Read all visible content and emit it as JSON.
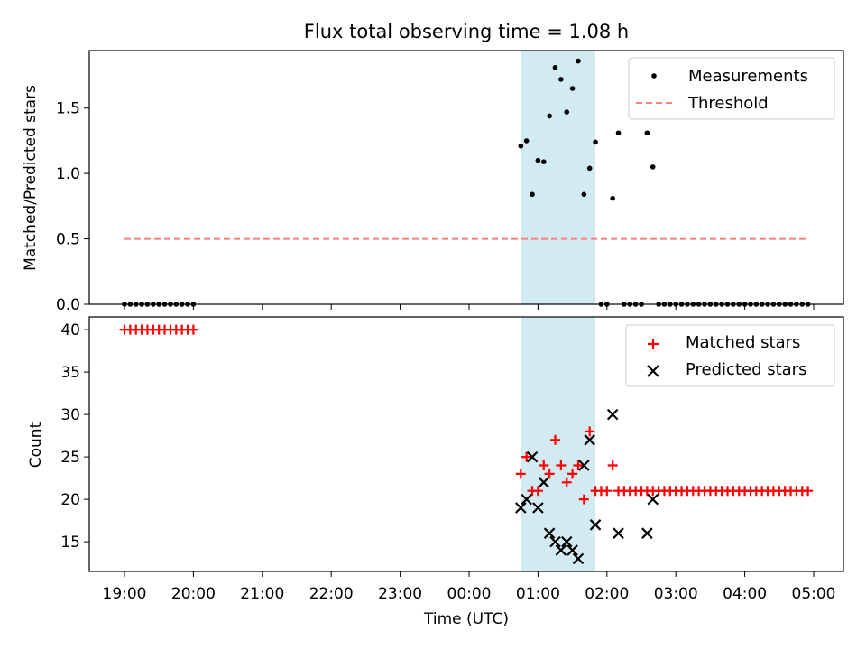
{
  "chart_data": [
    {
      "type": "scatter",
      "title": "Flux total observing time = 1.08 h",
      "xlabel": "",
      "ylabel": "Matched/Predicted stars",
      "ylim": [
        0,
        1.94
      ],
      "yticks": [
        0.0,
        0.5,
        1.0,
        1.5
      ],
      "ytick_labels": [
        "0.0",
        "0.5",
        "1.0",
        "1.5"
      ],
      "highlight_span": {
        "start": "00:45",
        "end": "01:50",
        "color": "#add8e6"
      },
      "legend_position": "top-right",
      "series": [
        {
          "name": "Measurements",
          "color": "#000000",
          "marker": "dot",
          "points": [
            [
              "19:00",
              0
            ],
            [
              "19:05",
              0
            ],
            [
              "19:10",
              0
            ],
            [
              "19:15",
              0
            ],
            [
              "19:20",
              0
            ],
            [
              "19:25",
              0
            ],
            [
              "19:30",
              0
            ],
            [
              "19:35",
              0
            ],
            [
              "19:40",
              0
            ],
            [
              "19:45",
              0
            ],
            [
              "19:50",
              0
            ],
            [
              "19:55",
              0
            ],
            [
              "20:00",
              0
            ],
            [
              "00:45",
              1.21
            ],
            [
              "00:50",
              1.25
            ],
            [
              "00:55",
              0.84
            ],
            [
              "01:00",
              1.1
            ],
            [
              "01:05",
              1.09
            ],
            [
              "01:10",
              1.44
            ],
            [
              "01:15",
              1.81
            ],
            [
              "01:20",
              1.72
            ],
            [
              "01:25",
              1.47
            ],
            [
              "01:30",
              1.65
            ],
            [
              "01:35",
              1.86
            ],
            [
              "01:40",
              0.84
            ],
            [
              "01:45",
              1.04
            ],
            [
              "01:50",
              1.24
            ],
            [
              "01:55",
              0
            ],
            [
              "02:00",
              0
            ],
            [
              "02:05",
              0.81
            ],
            [
              "02:10",
              1.31
            ],
            [
              "02:15",
              0
            ],
            [
              "02:20",
              0
            ],
            [
              "02:25",
              0
            ],
            [
              "02:30",
              0
            ],
            [
              "02:35",
              1.31
            ],
            [
              "02:40",
              1.05
            ],
            [
              "02:45",
              0
            ],
            [
              "02:50",
              0
            ],
            [
              "02:55",
              0
            ],
            [
              "03:00",
              0
            ],
            [
              "03:05",
              0
            ],
            [
              "03:10",
              0
            ],
            [
              "03:15",
              0
            ],
            [
              "03:20",
              0
            ],
            [
              "03:25",
              0
            ],
            [
              "03:30",
              0
            ],
            [
              "03:35",
              0
            ],
            [
              "03:40",
              0
            ],
            [
              "03:45",
              0
            ],
            [
              "03:50",
              0
            ],
            [
              "03:55",
              0
            ],
            [
              "04:00",
              0
            ],
            [
              "04:05",
              0
            ],
            [
              "04:10",
              0
            ],
            [
              "04:15",
              0
            ],
            [
              "04:20",
              0
            ],
            [
              "04:25",
              0
            ],
            [
              "04:30",
              0
            ],
            [
              "04:35",
              0
            ],
            [
              "04:40",
              0
            ],
            [
              "04:45",
              0
            ],
            [
              "04:50",
              0
            ],
            [
              "04:55",
              0
            ]
          ]
        },
        {
          "name": "Threshold",
          "color": "#ff7f7f",
          "style": "dashed-line",
          "points": [
            [
              "19:00",
              0.5
            ],
            [
              "04:55",
              0.5
            ]
          ]
        }
      ]
    },
    {
      "type": "scatter",
      "title": "",
      "xlabel": "Time (UTC)",
      "ylabel": "Count",
      "ylim": [
        11.5,
        41.5
      ],
      "yticks": [
        15,
        20,
        25,
        30,
        35,
        40
      ],
      "ytick_labels": [
        "15",
        "20",
        "25",
        "30",
        "35",
        "40"
      ],
      "xticks": [
        "19:00",
        "20:00",
        "21:00",
        "22:00",
        "23:00",
        "00:00",
        "01:00",
        "02:00",
        "03:00",
        "04:00",
        "05:00"
      ],
      "highlight_span": {
        "start": "00:45",
        "end": "01:50",
        "color": "#add8e6"
      },
      "legend_position": "top-right",
      "series": [
        {
          "name": "Matched stars",
          "color": "#ff0000",
          "marker": "plus",
          "points": [
            [
              "19:00",
              40
            ],
            [
              "19:05",
              40
            ],
            [
              "19:10",
              40
            ],
            [
              "19:15",
              40
            ],
            [
              "19:20",
              40
            ],
            [
              "19:25",
              40
            ],
            [
              "19:30",
              40
            ],
            [
              "19:35",
              40
            ],
            [
              "19:40",
              40
            ],
            [
              "19:45",
              40
            ],
            [
              "19:50",
              40
            ],
            [
              "19:55",
              40
            ],
            [
              "20:00",
              40
            ],
            [
              "00:45",
              23
            ],
            [
              "00:50",
              25
            ],
            [
              "00:55",
              21
            ],
            [
              "01:00",
              21
            ],
            [
              "01:05",
              24
            ],
            [
              "01:10",
              23
            ],
            [
              "01:15",
              27
            ],
            [
              "01:20",
              24
            ],
            [
              "01:25",
              22
            ],
            [
              "01:30",
              23
            ],
            [
              "01:35",
              24
            ],
            [
              "01:40",
              20
            ],
            [
              "01:45",
              28
            ],
            [
              "01:50",
              21
            ],
            [
              "01:55",
              21
            ],
            [
              "02:00",
              21
            ],
            [
              "02:05",
              24
            ],
            [
              "02:10",
              21
            ],
            [
              "02:15",
              21
            ],
            [
              "02:20",
              21
            ],
            [
              "02:25",
              21
            ],
            [
              "02:30",
              21
            ],
            [
              "02:35",
              21
            ],
            [
              "02:40",
              21
            ],
            [
              "02:45",
              21
            ],
            [
              "02:50",
              21
            ],
            [
              "02:55",
              21
            ],
            [
              "03:00",
              21
            ],
            [
              "03:05",
              21
            ],
            [
              "03:10",
              21
            ],
            [
              "03:15",
              21
            ],
            [
              "03:20",
              21
            ],
            [
              "03:25",
              21
            ],
            [
              "03:30",
              21
            ],
            [
              "03:35",
              21
            ],
            [
              "03:40",
              21
            ],
            [
              "03:45",
              21
            ],
            [
              "03:50",
              21
            ],
            [
              "03:55",
              21
            ],
            [
              "04:00",
              21
            ],
            [
              "04:05",
              21
            ],
            [
              "04:10",
              21
            ],
            [
              "04:15",
              21
            ],
            [
              "04:20",
              21
            ],
            [
              "04:25",
              21
            ],
            [
              "04:30",
              21
            ],
            [
              "04:35",
              21
            ],
            [
              "04:40",
              21
            ],
            [
              "04:45",
              21
            ],
            [
              "04:50",
              21
            ],
            [
              "04:55",
              21
            ]
          ]
        },
        {
          "name": "Predicted stars",
          "color": "#000000",
          "marker": "x",
          "points": [
            [
              "00:45",
              19
            ],
            [
              "00:50",
              20
            ],
            [
              "00:55",
              25
            ],
            [
              "01:00",
              19
            ],
            [
              "01:05",
              22
            ],
            [
              "01:10",
              16
            ],
            [
              "01:15",
              15
            ],
            [
              "01:20",
              14
            ],
            [
              "01:25",
              15
            ],
            [
              "01:30",
              14
            ],
            [
              "01:35",
              13
            ],
            [
              "01:40",
              24
            ],
            [
              "01:45",
              27
            ],
            [
              "01:50",
              17
            ],
            [
              "02:05",
              30
            ],
            [
              "02:10",
              16
            ],
            [
              "02:35",
              16
            ],
            [
              "02:40",
              20
            ]
          ]
        }
      ]
    }
  ]
}
